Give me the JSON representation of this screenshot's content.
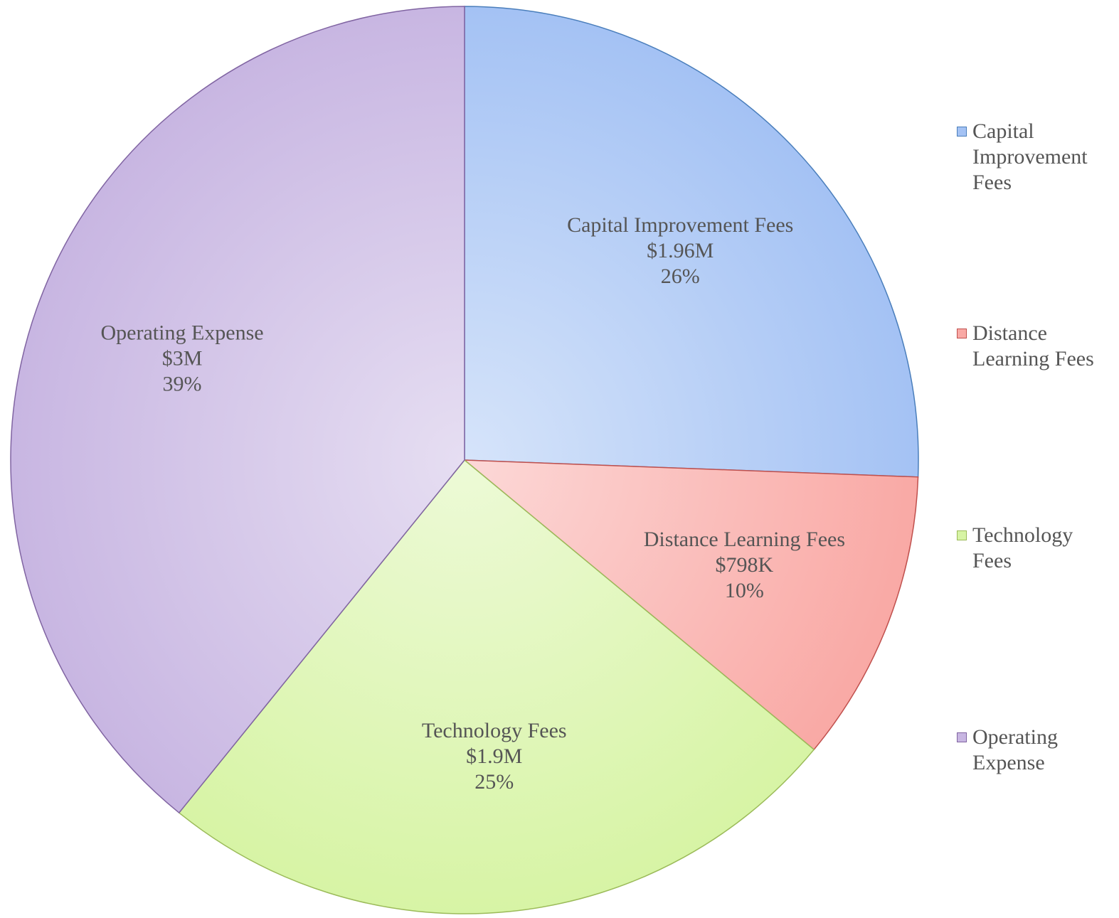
{
  "chart_data": {
    "type": "pie",
    "series": [
      {
        "name": "Capital Improvement Fees",
        "color": "#a4c2f4",
        "values": [
          1960000
        ],
        "value_labels": [
          "$1.96M"
        ],
        "percents": [
          26
        ],
        "percent_labels": [
          "26%"
        ]
      },
      {
        "name": "Distance Learning Fees",
        "color": "#f9a9a5",
        "values": [
          798000
        ],
        "value_labels": [
          "$798K"
        ],
        "percents": [
          10
        ],
        "percent_labels": [
          "10%"
        ]
      },
      {
        "name": "Technology Fees",
        "color": "#d7f4a5",
        "values": [
          1900000
        ],
        "value_labels": [
          "$1.9M"
        ],
        "percents": [
          25
        ],
        "percent_labels": [
          "25%"
        ]
      },
      {
        "name": "Operating Expense",
        "color": "#c8b6e2",
        "values": [
          3000000
        ],
        "value_labels": [
          "$3M"
        ],
        "percents": [
          39
        ],
        "percent_labels": [
          "39%"
        ]
      }
    ],
    "legend": "right"
  }
}
